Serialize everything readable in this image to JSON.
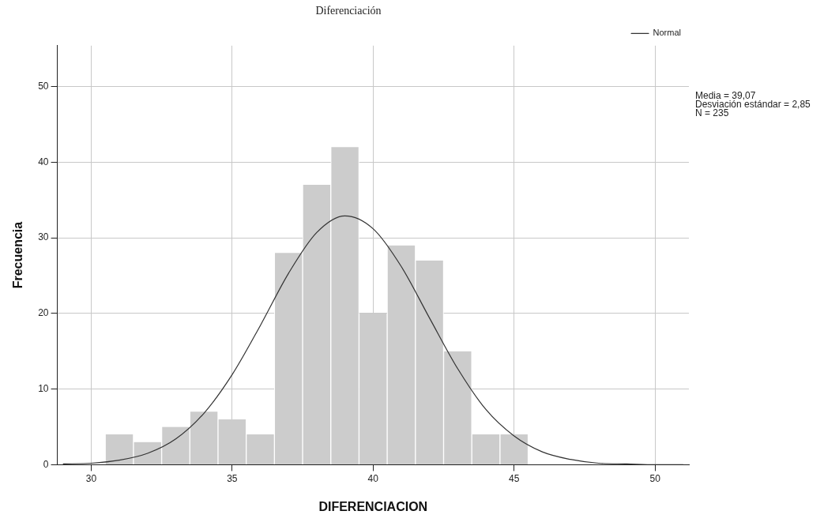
{
  "chart_data": {
    "type": "histogram",
    "title": "Diferenciación",
    "xlabel": "DIFERENCIACION",
    "ylabel": "Frecuencia",
    "bins": [
      30.5,
      31.5,
      32.5,
      33.5,
      34.5,
      35.5,
      36.5,
      37.5,
      38.5,
      39.5,
      40.5,
      41.5,
      42.5,
      43.5,
      44.5,
      45.5
    ],
    "values": [
      4,
      3,
      5,
      7,
      6,
      4,
      28,
      37,
      42,
      20,
      29,
      27,
      15,
      4,
      4
    ],
    "color": "#cccccc",
    "series": [
      {
        "type": "line",
        "name": "Normal",
        "color": "#333333",
        "x": [
          29,
          30,
          31,
          32,
          33,
          34,
          35,
          36,
          37,
          38,
          39,
          40,
          41,
          42,
          43,
          44,
          45,
          46,
          47,
          48,
          49,
          50,
          51
        ],
        "values": [
          0.1,
          0.2,
          0.6,
          1.5,
          3.4,
          6.8,
          11.9,
          18.4,
          25.3,
          30.7,
          32.9,
          31.2,
          26.2,
          19.4,
          12.7,
          7.3,
          3.8,
          1.7,
          0.7,
          0.2,
          0.1,
          0,
          0
        ]
      }
    ],
    "annotations": [
      "Media = 39,07",
      "Desviación estándar = 2,85",
      "N = 235"
    ],
    "xlim": [
      28.8,
      51.2
    ],
    "xticks": [
      30,
      35,
      40,
      45,
      50
    ],
    "ylim": [
      0,
      55.4
    ],
    "yticks": [
      0,
      10,
      20,
      30,
      40,
      50
    ],
    "grid": true,
    "legend": "top right"
  }
}
